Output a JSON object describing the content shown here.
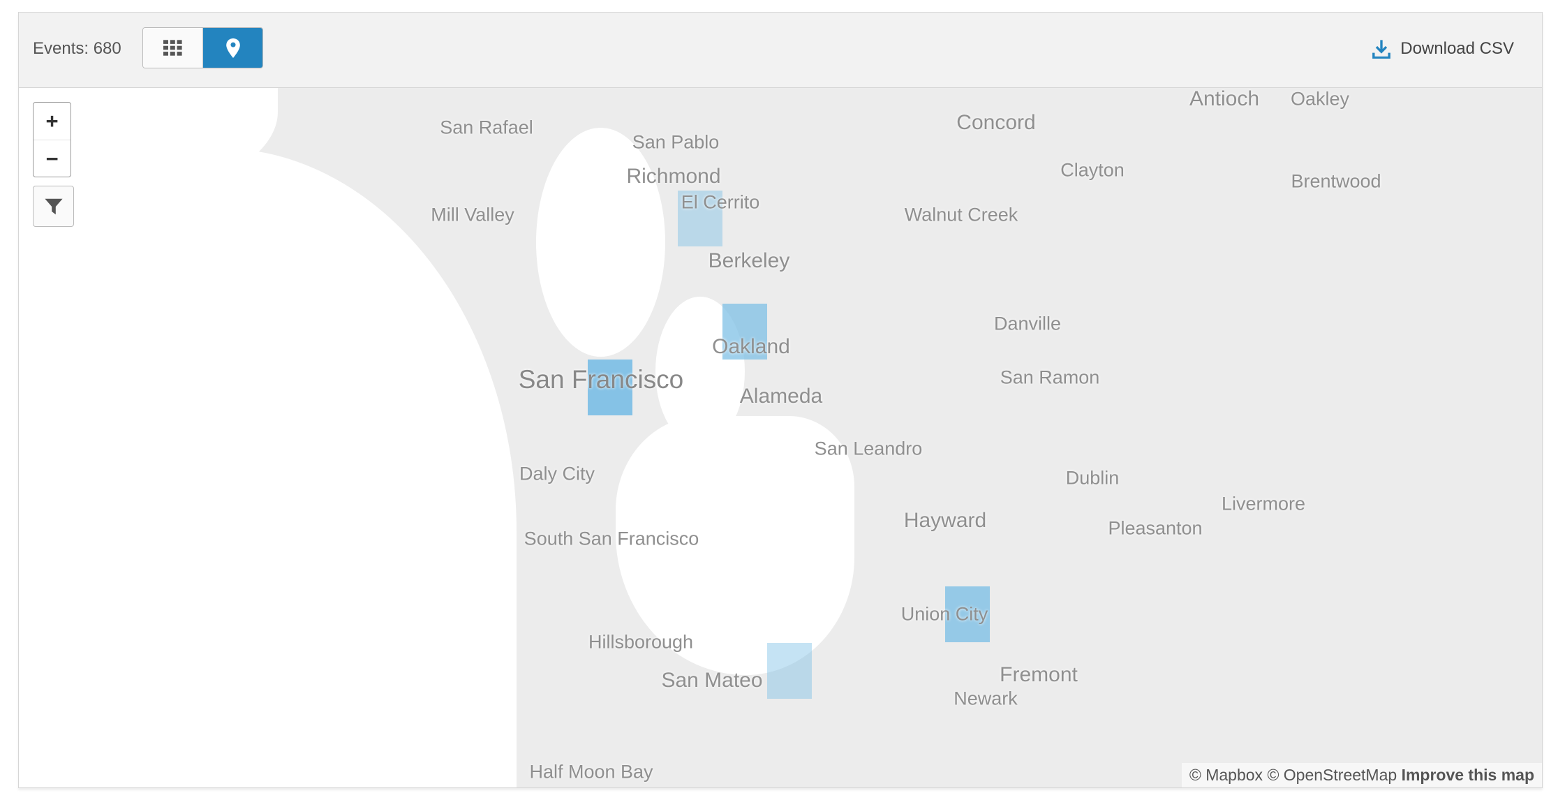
{
  "header": {
    "events_label": "Events: 680",
    "download_label": "Download CSV",
    "accent": "#2384bf",
    "view_toggle": [
      {
        "icon": "grid-icon",
        "active": false
      },
      {
        "icon": "map-pin-icon",
        "active": true
      }
    ]
  },
  "map": {
    "controls": {
      "zoom_in": "+",
      "zoom_out": "−",
      "filter_icon": "filter-icon"
    },
    "labels": [
      "Antioch",
      "Oakley",
      "San Rafael",
      "San Pablo",
      "Concord",
      "Richmond",
      "Clayton",
      "Brentwood",
      "El Cerrito",
      "Mill Valley",
      "Walnut Creek",
      "Berkeley",
      "Danville",
      "Oakland",
      "San Francisco",
      "San Ramon",
      "Alameda",
      "San Leandro",
      "Dublin",
      "Daly City",
      "Livermore",
      "Hayward",
      "Pleasanton",
      "South San Francisco",
      "Union City",
      "Hillsborough",
      "Fremont",
      "San Mateo",
      "Newark",
      "Half Moon Bay"
    ],
    "heat_color": "#7fc0e6",
    "attribution": {
      "mapbox": "© Mapbox",
      "osm": "© OpenStreetMap",
      "improve": "Improve this map"
    }
  }
}
